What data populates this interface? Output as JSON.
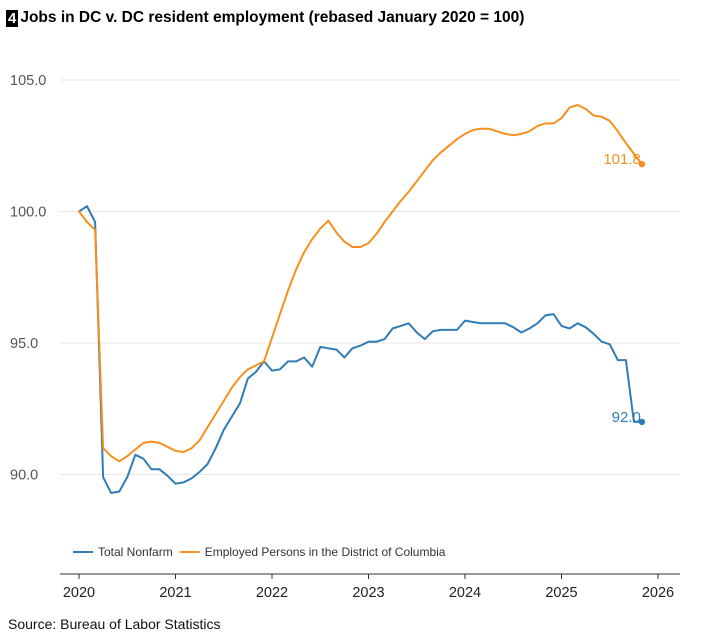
{
  "figure_number": "4",
  "title": "Jobs in DC v. DC resident employment (rebased January 2020 = 100)",
  "source": "Source: Bureau of Labor Statistics",
  "colors": {
    "total_nonfarm": "#2e7db5",
    "employed_persons": "#f5901e",
    "grid": "#e6e6e6",
    "axis": "#333333"
  },
  "chart_data": {
    "type": "line",
    "title": "Jobs in DC v. DC resident employment (rebased January 2020 = 100)",
    "xlabel": "",
    "ylabel": "",
    "xlim": [
      2020,
      2026.2
    ],
    "ylim": [
      86.5,
      106
    ],
    "x_ticks": [
      "2020",
      "2021",
      "2022",
      "2023",
      "2024",
      "2025",
      "2026"
    ],
    "y_ticks": [
      "90.0",
      "95.0",
      "100.0",
      "105.0"
    ],
    "grid": true,
    "legend_position": "bottom-left",
    "series": [
      {
        "name": "Total Nonfarm",
        "color": "#2e7db5",
        "end_label": "92.0",
        "points": [
          [
            2020.0,
            100.0
          ],
          [
            2020.083,
            100.2
          ],
          [
            2020.167,
            99.6
          ],
          [
            2020.25,
            89.9
          ],
          [
            2020.333,
            89.3
          ],
          [
            2020.417,
            89.35
          ],
          [
            2020.5,
            89.9
          ],
          [
            2020.583,
            90.75
          ],
          [
            2020.667,
            90.6
          ],
          [
            2020.75,
            90.2
          ],
          [
            2020.833,
            90.2
          ],
          [
            2020.917,
            89.95
          ],
          [
            2021.0,
            89.65
          ],
          [
            2021.083,
            89.7
          ],
          [
            2021.167,
            89.85
          ],
          [
            2021.25,
            90.1
          ],
          [
            2021.333,
            90.4
          ],
          [
            2021.417,
            91.0
          ],
          [
            2021.5,
            91.7
          ],
          [
            2021.583,
            92.2
          ],
          [
            2021.667,
            92.7
          ],
          [
            2021.75,
            93.65
          ],
          [
            2021.833,
            93.9
          ],
          [
            2021.917,
            94.3
          ],
          [
            2022.0,
            93.95
          ],
          [
            2022.083,
            94.0
          ],
          [
            2022.167,
            94.3
          ],
          [
            2022.25,
            94.3
          ],
          [
            2022.333,
            94.45
          ],
          [
            2022.417,
            94.1
          ],
          [
            2022.5,
            94.85
          ],
          [
            2022.583,
            94.8
          ],
          [
            2022.667,
            94.75
          ],
          [
            2022.75,
            94.45
          ],
          [
            2022.833,
            94.8
          ],
          [
            2022.917,
            94.9
          ],
          [
            2023.0,
            95.05
          ],
          [
            2023.083,
            95.05
          ],
          [
            2023.167,
            95.15
          ],
          [
            2023.25,
            95.55
          ],
          [
            2023.333,
            95.65
          ],
          [
            2023.417,
            95.75
          ],
          [
            2023.5,
            95.4
          ],
          [
            2023.583,
            95.15
          ],
          [
            2023.667,
            95.45
          ],
          [
            2023.75,
            95.5
          ],
          [
            2023.833,
            95.5
          ],
          [
            2023.917,
            95.5
          ],
          [
            2024.0,
            95.85
          ],
          [
            2024.083,
            95.8
          ],
          [
            2024.167,
            95.75
          ],
          [
            2024.25,
            95.75
          ],
          [
            2024.333,
            95.75
          ],
          [
            2024.417,
            95.75
          ],
          [
            2024.5,
            95.6
          ],
          [
            2024.583,
            95.4
          ],
          [
            2024.667,
            95.55
          ],
          [
            2024.75,
            95.75
          ],
          [
            2024.833,
            96.05
          ],
          [
            2024.917,
            96.1
          ],
          [
            2025.0,
            95.65
          ],
          [
            2025.083,
            95.55
          ],
          [
            2025.167,
            95.75
          ],
          [
            2025.25,
            95.6
          ],
          [
            2025.333,
            95.35
          ],
          [
            2025.417,
            95.05
          ],
          [
            2025.5,
            94.95
          ],
          [
            2025.583,
            94.35
          ],
          [
            2025.667,
            94.35
          ],
          [
            2025.75,
            92.0
          ],
          [
            2025.833,
            92.0
          ]
        ]
      },
      {
        "name": "Employed Persons in the District of Columbia",
        "color": "#f5901e",
        "end_label": "101.8",
        "points": [
          [
            2020.0,
            100.0
          ],
          [
            2020.083,
            99.6
          ],
          [
            2020.167,
            99.3
          ],
          [
            2020.25,
            91.0
          ],
          [
            2020.333,
            90.7
          ],
          [
            2020.417,
            90.5
          ],
          [
            2020.5,
            90.7
          ],
          [
            2020.583,
            90.95
          ],
          [
            2020.667,
            91.2
          ],
          [
            2020.75,
            91.25
          ],
          [
            2020.833,
            91.2
          ],
          [
            2020.917,
            91.05
          ],
          [
            2021.0,
            90.9
          ],
          [
            2021.083,
            90.85
          ],
          [
            2021.167,
            91.0
          ],
          [
            2021.25,
            91.3
          ],
          [
            2021.333,
            91.8
          ],
          [
            2021.417,
            92.3
          ],
          [
            2021.5,
            92.8
          ],
          [
            2021.583,
            93.3
          ],
          [
            2021.667,
            93.7
          ],
          [
            2021.75,
            94.0
          ],
          [
            2021.833,
            94.15
          ],
          [
            2021.917,
            94.3
          ],
          [
            2022.0,
            95.2
          ],
          [
            2022.083,
            96.1
          ],
          [
            2022.167,
            97.0
          ],
          [
            2022.25,
            97.8
          ],
          [
            2022.333,
            98.45
          ],
          [
            2022.417,
            98.95
          ],
          [
            2022.5,
            99.35
          ],
          [
            2022.583,
            99.65
          ],
          [
            2022.667,
            99.2
          ],
          [
            2022.75,
            98.85
          ],
          [
            2022.833,
            98.65
          ],
          [
            2022.917,
            98.65
          ],
          [
            2023.0,
            98.8
          ],
          [
            2023.083,
            99.15
          ],
          [
            2023.167,
            99.6
          ],
          [
            2023.25,
            100.0
          ],
          [
            2023.333,
            100.4
          ],
          [
            2023.417,
            100.75
          ],
          [
            2023.5,
            101.15
          ],
          [
            2023.583,
            101.55
          ],
          [
            2023.667,
            101.95
          ],
          [
            2023.75,
            102.25
          ],
          [
            2023.833,
            102.5
          ],
          [
            2023.917,
            102.75
          ],
          [
            2024.0,
            102.95
          ],
          [
            2024.083,
            103.1
          ],
          [
            2024.167,
            103.15
          ],
          [
            2024.25,
            103.15
          ],
          [
            2024.333,
            103.05
          ],
          [
            2024.417,
            102.95
          ],
          [
            2024.5,
            102.9
          ],
          [
            2024.583,
            102.95
          ],
          [
            2024.667,
            103.05
          ],
          [
            2024.75,
            103.25
          ],
          [
            2024.833,
            103.35
          ],
          [
            2024.917,
            103.35
          ],
          [
            2025.0,
            103.55
          ],
          [
            2025.083,
            103.95
          ],
          [
            2025.167,
            104.05
          ],
          [
            2025.25,
            103.9
          ],
          [
            2025.333,
            103.65
          ],
          [
            2025.417,
            103.6
          ],
          [
            2025.5,
            103.45
          ],
          [
            2025.583,
            103.05
          ],
          [
            2025.667,
            102.6
          ],
          [
            2025.833,
            101.8
          ]
        ]
      }
    ]
  }
}
